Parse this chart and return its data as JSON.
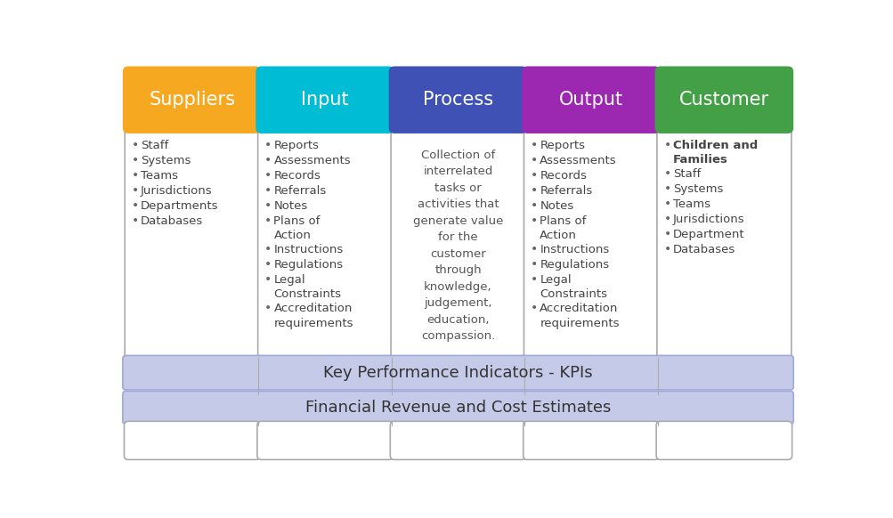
{
  "columns": [
    {
      "title": "Suppliers",
      "color": "#F5A820",
      "text_color": "#FFFFFF",
      "items": [
        [
          "Staff",
          false
        ],
        [
          "Systems",
          false
        ],
        [
          "Teams",
          false
        ],
        [
          "Jurisdictions",
          false
        ],
        [
          "Departments",
          false
        ],
        [
          "Databases",
          false
        ]
      ],
      "center_text": null
    },
    {
      "title": "Input",
      "color": "#00BCD4",
      "text_color": "#FFFFFF",
      "items": [
        [
          "Reports",
          false
        ],
        [
          "Assessments",
          false
        ],
        [
          "Records",
          false
        ],
        [
          "Referrals",
          false
        ],
        [
          "Notes",
          false
        ],
        [
          "Plans of\nAction",
          false
        ],
        [
          "Instructions",
          false
        ],
        [
          "Regulations",
          false
        ],
        [
          "Legal\nConstraints",
          false
        ],
        [
          "Accreditation\nrequirements",
          false
        ]
      ],
      "center_text": null
    },
    {
      "title": "Process",
      "color": "#3F51B5",
      "text_color": "#FFFFFF",
      "items": [],
      "center_text": "Collection of\ninterrelated\ntasks or\nactivities that\ngenerate value\nfor the\ncustomer\nthrough\nknowledge,\njudgement,\neducation,\ncompassion."
    },
    {
      "title": "Output",
      "color": "#9C27B0",
      "text_color": "#FFFFFF",
      "items": [
        [
          "Reports",
          false
        ],
        [
          "Assessments",
          false
        ],
        [
          "Records",
          false
        ],
        [
          "Referrals",
          false
        ],
        [
          "Notes",
          false
        ],
        [
          "Plans of\nAction",
          false
        ],
        [
          "Instructions",
          false
        ],
        [
          "Regulations",
          false
        ],
        [
          "Legal\nConstraints",
          false
        ],
        [
          "Accreditation\nrequirements",
          false
        ]
      ],
      "center_text": null
    },
    {
      "title": "Customer",
      "color": "#43A047",
      "text_color": "#FFFFFF",
      "items": [
        [
          "Children and\nFamilies",
          true
        ],
        [
          "Staff",
          false
        ],
        [
          "Systems",
          false
        ],
        [
          "Teams",
          false
        ],
        [
          "Jurisdictions",
          false
        ],
        [
          "Department",
          false
        ],
        [
          "Databases",
          false
        ]
      ],
      "center_text": null
    }
  ],
  "kpi_text": "Key Performance Indicators - KPIs",
  "financial_text": "Financial Revenue and Cost Estimates",
  "background_color": "#FFFFFF",
  "border_color": "#AAAAAA",
  "bar_color": "#C5CAE9",
  "bar_border_color": "#9FA8DA",
  "text_color_dark": "#555555",
  "bullet_color": "#666666"
}
